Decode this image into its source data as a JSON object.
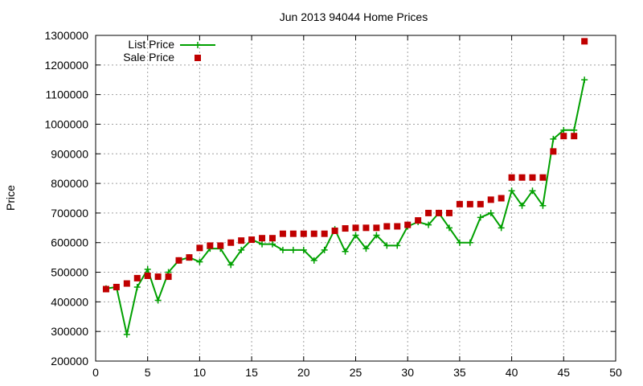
{
  "chart_data": {
    "type": "line",
    "title": "Jun 2013 94044 Home Prices",
    "xlabel": "",
    "ylabel": "Price",
    "xlim": [
      0,
      50
    ],
    "ylim": [
      200000,
      1300000
    ],
    "x_ticks": [
      0,
      5,
      10,
      15,
      20,
      25,
      30,
      35,
      40,
      45,
      50
    ],
    "y_ticks": [
      200000,
      300000,
      400000,
      500000,
      600000,
      700000,
      800000,
      900000,
      1000000,
      1100000,
      1200000,
      1300000
    ],
    "grid": true,
    "legend_position": "top-left",
    "series": [
      {
        "name": "List Price",
        "style": "line-with-plus-markers",
        "color": "#00a000",
        "x": [
          1,
          2,
          3,
          4,
          5,
          6,
          7,
          8,
          9,
          10,
          11,
          12,
          13,
          14,
          15,
          16,
          17,
          18,
          19,
          20,
          21,
          22,
          23,
          24,
          25,
          26,
          27,
          28,
          29,
          30,
          31,
          32,
          33,
          34,
          35,
          36,
          37,
          38,
          39,
          40,
          41,
          42,
          43,
          44,
          45,
          46,
          47
        ],
        "values": [
          445000,
          450000,
          290000,
          450000,
          510000,
          405000,
          500000,
          540000,
          550000,
          535000,
          580000,
          580000,
          525000,
          575000,
          610000,
          595000,
          595000,
          575000,
          575000,
          575000,
          540000,
          575000,
          645000,
          570000,
          625000,
          580000,
          625000,
          590000,
          590000,
          655000,
          670000,
          660000,
          700000,
          650000,
          600000,
          600000,
          685000,
          700000,
          650000,
          775000,
          725000,
          775000,
          725000,
          950000,
          980000,
          980000,
          1150000
        ]
      },
      {
        "name": "Sale Price",
        "style": "square-markers",
        "color": "#c00000",
        "x": [
          1,
          2,
          3,
          4,
          5,
          6,
          7,
          8,
          9,
          10,
          11,
          12,
          13,
          14,
          15,
          16,
          17,
          18,
          19,
          20,
          21,
          22,
          23,
          24,
          25,
          26,
          27,
          28,
          29,
          30,
          31,
          32,
          33,
          34,
          35,
          36,
          37,
          38,
          39,
          40,
          41,
          42,
          43,
          44,
          45,
          46,
          47
        ],
        "values": [
          443000,
          450000,
          462000,
          480000,
          488000,
          485000,
          485000,
          540000,
          550000,
          582000,
          590000,
          590000,
          600000,
          607000,
          610000,
          615000,
          615000,
          630000,
          630000,
          630000,
          630000,
          630000,
          640000,
          648000,
          650000,
          650000,
          650000,
          655000,
          655000,
          660000,
          675000,
          700000,
          700000,
          700000,
          730000,
          730000,
          730000,
          745000,
          750000,
          820000,
          820000,
          820000,
          820000,
          908000,
          960000,
          960000,
          1280000
        ]
      }
    ]
  }
}
